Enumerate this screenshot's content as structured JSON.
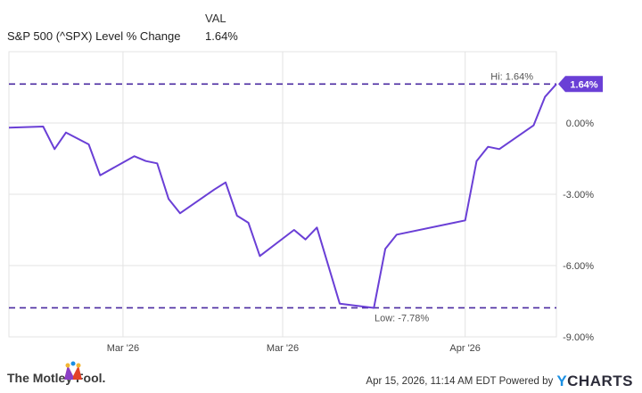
{
  "legend": {
    "header": "VAL",
    "series_name": "S&P 500 (^SPX) Level % Change",
    "series_value": "1.64%"
  },
  "chart_data": {
    "type": "line",
    "series": [
      {
        "name": "S&P 500 (^SPX) Level % Change",
        "color": "#6a3fd6",
        "points": [
          [
            "2026-02-16",
            -0.2
          ],
          [
            "2026-02-19",
            -0.15
          ],
          [
            "2026-02-20",
            -1.1
          ],
          [
            "2026-02-21",
            -0.4
          ],
          [
            "2026-02-23",
            -0.9
          ],
          [
            "2026-02-24",
            -2.2
          ],
          [
            "2026-02-27",
            -1.4
          ],
          [
            "2026-02-28",
            -1.6
          ],
          [
            "2026-03-01",
            -1.7
          ],
          [
            "2026-03-02",
            -3.2
          ],
          [
            "2026-03-03",
            -3.8
          ],
          [
            "2026-03-06",
            -2.8
          ],
          [
            "2026-03-07",
            -2.5
          ],
          [
            "2026-03-08",
            -3.9
          ],
          [
            "2026-03-09",
            -4.2
          ],
          [
            "2026-03-10",
            -5.6
          ],
          [
            "2026-03-13",
            -4.5
          ],
          [
            "2026-03-14",
            -4.9
          ],
          [
            "2026-03-15",
            -4.4
          ],
          [
            "2026-03-17",
            -7.6
          ],
          [
            "2026-03-20",
            -7.78
          ],
          [
            "2026-03-21",
            -5.3
          ],
          [
            "2026-03-22",
            -4.7
          ],
          [
            "2026-03-27",
            -4.2
          ],
          [
            "2026-03-28",
            -4.1
          ],
          [
            "2026-03-29",
            -1.6
          ],
          [
            "2026-03-30",
            -1.0
          ],
          [
            "2026-03-31",
            -1.1
          ],
          [
            "2026-04-03",
            -0.1
          ],
          [
            "2026-04-04",
            1.1
          ],
          [
            "2026-04-05",
            1.64
          ]
        ]
      }
    ],
    "x_ticks": [
      {
        "date": "2026-02-26",
        "label": "Mar '26"
      },
      {
        "date": "2026-03-12",
        "label": "Mar '26"
      },
      {
        "date": "2026-03-28",
        "label": "Apr '26"
      }
    ],
    "y_ticks": [
      {
        "value": 0,
        "label": "0.00%"
      },
      {
        "value": -3,
        "label": "-3.00%"
      },
      {
        "value": -6,
        "label": "-6.00%"
      },
      {
        "value": -9,
        "label": "-9.00%"
      }
    ],
    "xlim": [
      "2026-02-16",
      "2026-04-05"
    ],
    "ylim": [
      -9,
      3
    ],
    "hi": {
      "value": 1.64,
      "label": "Hi: 1.64%"
    },
    "low": {
      "value": -7.78,
      "label": "Low: -7.78%"
    },
    "last_value_label": "1.64%",
    "grid": true
  },
  "footer": {
    "brand": "The Motley Fool.",
    "timestamp": "Apr 15, 2026, 11:14 AM EDT Powered by",
    "ycharts_y": "Y",
    "ycharts_rest": "CHARTS"
  },
  "colors": {
    "line": "#6a3fd6",
    "dashed": "#4a2aa0",
    "badge": "#6a3fd6",
    "grid": "#e3e3e3"
  }
}
